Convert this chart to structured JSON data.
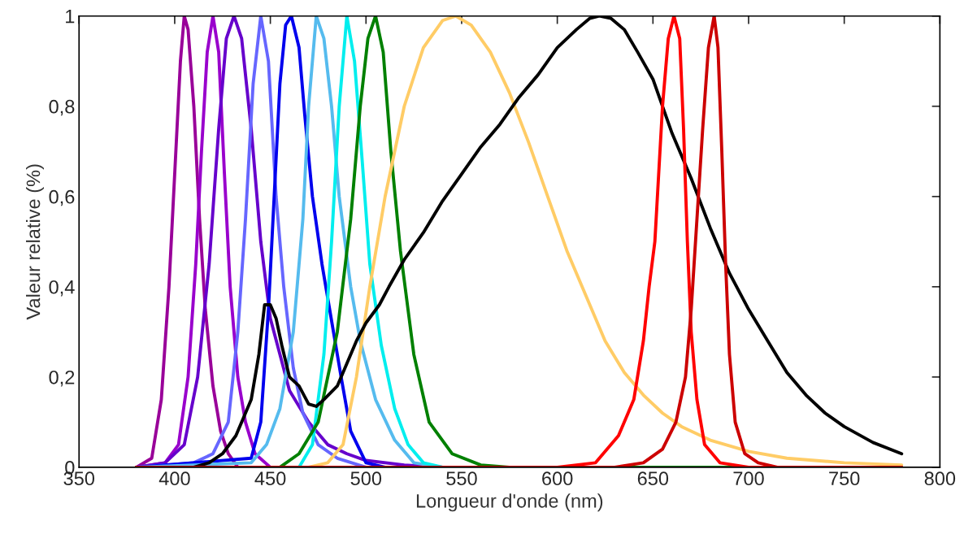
{
  "chart_data": {
    "type": "line",
    "xlabel": "Longueur d'onde (nm)",
    "ylabel": "Valeur relative (%)",
    "xlim": [
      350,
      800
    ],
    "xticks": [
      350,
      400,
      450,
      500,
      550,
      600,
      650,
      700,
      750,
      800
    ],
    "ylim": [
      0,
      1
    ],
    "yticks": [
      0,
      {
        "value": 0.2,
        "label": "0,2"
      },
      {
        "value": 0.4,
        "label": "0,4"
      },
      {
        "value": 0.6,
        "label": "0,6"
      },
      {
        "value": 0.8,
        "label": "0,8"
      },
      1
    ],
    "grid": false,
    "legend": false,
    "line_style": "solid",
    "marker": "none",
    "series": [
      {
        "color": "#990099",
        "x": [
          380,
          388,
          393,
          397,
          400,
          403,
          405,
          407,
          410,
          413,
          416,
          420,
          424,
          428,
          433,
          780
        ],
        "values": [
          0,
          0.02,
          0.15,
          0.4,
          0.65,
          0.9,
          1,
          0.97,
          0.8,
          0.55,
          0.35,
          0.18,
          0.08,
          0.03,
          0,
          0
        ]
      },
      {
        "color": "#9900cc",
        "x": [
          380,
          395,
          402,
          407,
          411,
          414,
          417,
          420,
          423,
          426,
          429,
          433,
          437,
          442,
          450,
          780
        ],
        "values": [
          0,
          0.01,
          0.05,
          0.2,
          0.45,
          0.7,
          0.92,
          1,
          0.92,
          0.65,
          0.4,
          0.2,
          0.1,
          0.03,
          0,
          0
        ]
      },
      {
        "color": "#6600cc",
        "x": [
          380,
          395,
          405,
          412,
          418,
          423,
          427,
          431,
          435,
          440,
          445,
          450,
          455,
          460,
          470,
          480,
          490,
          500,
          520,
          540,
          780
        ],
        "values": [
          0,
          0.01,
          0.05,
          0.2,
          0.45,
          0.75,
          0.95,
          1,
          0.95,
          0.75,
          0.5,
          0.33,
          0.25,
          0.17,
          0.1,
          0.05,
          0.03,
          0.015,
          0.005,
          0,
          0
        ]
      },
      {
        "color": "#6666ff",
        "x": [
          380,
          410,
          420,
          428,
          433,
          437,
          441,
          445,
          449,
          453,
          457,
          462,
          467,
          475,
          485,
          500,
          780
        ],
        "values": [
          0,
          0.01,
          0.03,
          0.1,
          0.3,
          0.55,
          0.85,
          1,
          0.9,
          0.6,
          0.4,
          0.22,
          0.12,
          0.05,
          0.02,
          0,
          0
        ]
      },
      {
        "color": "#0000ee",
        "x": [
          380,
          440,
          445,
          449,
          452,
          455,
          458,
          461,
          465,
          468,
          472,
          477,
          483,
          487,
          492,
          500,
          510,
          780
        ],
        "values": [
          0,
          0.02,
          0.1,
          0.35,
          0.6,
          0.85,
          0.98,
          1,
          0.93,
          0.78,
          0.6,
          0.45,
          0.3,
          0.2,
          0.08,
          0.01,
          0,
          0
        ]
      },
      {
        "color": "#55bbee",
        "x": [
          380,
          440,
          448,
          455,
          462,
          467,
          470,
          474,
          478,
          482,
          486,
          492,
          497,
          505,
          515,
          525,
          540,
          780
        ],
        "values": [
          0,
          0.01,
          0.05,
          0.13,
          0.3,
          0.55,
          0.8,
          1,
          0.95,
          0.8,
          0.6,
          0.4,
          0.28,
          0.15,
          0.06,
          0.01,
          0,
          0
        ]
      },
      {
        "color": "#00eeee",
        "x": [
          380,
          465,
          472,
          478,
          482,
          486,
          490,
          494,
          498,
          502,
          508,
          515,
          522,
          530,
          540,
          780
        ],
        "values": [
          0,
          0,
          0.05,
          0.25,
          0.5,
          0.8,
          1,
          0.9,
          0.68,
          0.45,
          0.27,
          0.13,
          0.05,
          0.01,
          0,
          0
        ]
      },
      {
        "color": "#008000",
        "x": [
          380,
          455,
          465,
          475,
          485,
          492,
          497,
          501,
          505,
          509,
          513,
          518,
          525,
          533,
          545,
          560,
          575,
          780
        ],
        "values": [
          0,
          0,
          0.03,
          0.1,
          0.3,
          0.55,
          0.8,
          0.95,
          1,
          0.92,
          0.7,
          0.48,
          0.25,
          0.1,
          0.03,
          0.005,
          0,
          0
        ]
      },
      {
        "color": "#ffcc66",
        "x": [
          380,
          470,
          480,
          488,
          495,
          502,
          510,
          520,
          530,
          540,
          547,
          555,
          565,
          575,
          585,
          595,
          605,
          615,
          625,
          635,
          645,
          655,
          665,
          680,
          700,
          720,
          750,
          780
        ],
        "values": [
          0,
          0,
          0.01,
          0.05,
          0.2,
          0.4,
          0.6,
          0.8,
          0.93,
          0.99,
          1,
          0.98,
          0.92,
          0.83,
          0.72,
          0.6,
          0.48,
          0.38,
          0.28,
          0.21,
          0.16,
          0.12,
          0.09,
          0.06,
          0.035,
          0.02,
          0.01,
          0.005
        ]
      },
      {
        "color": "#000000",
        "x": [
          380,
          410,
          418,
          425,
          432,
          440,
          444,
          447,
          450,
          453,
          456,
          460,
          465,
          470,
          474,
          478,
          485,
          490,
          495,
          500,
          507,
          512,
          520,
          530,
          540,
          550,
          560,
          570,
          580,
          590,
          600,
          610,
          617,
          622,
          628,
          635,
          642,
          650,
          660,
          670,
          680,
          690,
          700,
          710,
          720,
          730,
          740,
          750,
          765,
          780
        ],
        "values": [
          0,
          0,
          0.01,
          0.03,
          0.07,
          0.15,
          0.25,
          0.36,
          0.36,
          0.33,
          0.27,
          0.2,
          0.18,
          0.14,
          0.135,
          0.15,
          0.18,
          0.23,
          0.28,
          0.32,
          0.36,
          0.4,
          0.46,
          0.52,
          0.59,
          0.65,
          0.71,
          0.76,
          0.82,
          0.87,
          0.93,
          0.97,
          0.995,
          1,
          0.995,
          0.97,
          0.92,
          0.86,
          0.74,
          0.64,
          0.53,
          0.43,
          0.35,
          0.28,
          0.21,
          0.16,
          0.12,
          0.09,
          0.055,
          0.03
        ]
      },
      {
        "color": "#ff0000",
        "x": [
          380,
          600,
          620,
          632,
          640,
          645,
          648,
          651,
          655,
          658,
          661,
          664,
          666,
          668,
          670,
          673,
          677,
          685,
          700,
          780
        ],
        "values": [
          0,
          0,
          0.01,
          0.07,
          0.15,
          0.28,
          0.4,
          0.5,
          0.8,
          0.95,
          1,
          0.95,
          0.75,
          0.5,
          0.3,
          0.15,
          0.05,
          0.01,
          0,
          0
        ]
      },
      {
        "color": "#cc0000",
        "x": [
          380,
          630,
          645,
          655,
          662,
          667,
          670,
          673,
          676,
          679,
          682,
          684,
          686,
          688,
          690,
          693,
          698,
          705,
          715,
          780
        ],
        "values": [
          0,
          0,
          0.01,
          0.04,
          0.1,
          0.2,
          0.35,
          0.55,
          0.75,
          0.93,
          1,
          0.93,
          0.7,
          0.45,
          0.25,
          0.1,
          0.03,
          0.01,
          0,
          0
        ]
      }
    ]
  }
}
